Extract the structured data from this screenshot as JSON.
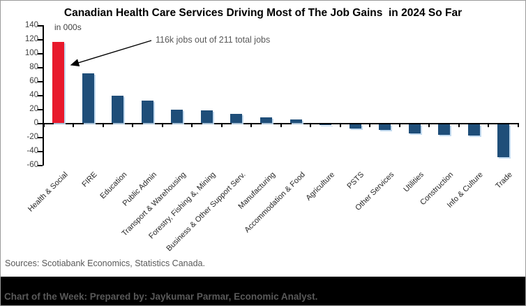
{
  "title": "Canadian Health Care Services Driving Most of The Job Gains  in 2024 So Far",
  "units_label": "in 000s",
  "annotation": {
    "text": "116k jobs out of 211 total jobs"
  },
  "chart_data": {
    "type": "bar",
    "title": "Canadian Health Care Services Driving Most of The Job Gains in 2024 So Far",
    "ylabel": "in 000s",
    "categories": [
      "Health & Social",
      "FIRE",
      "Education",
      "Public Admin",
      "Transport & Warehousing",
      "Forestry, Fishing &, Mining",
      "Business & Other Support Serv.",
      "Manufacturing",
      "Accommodation & Food",
      "Agriculture",
      "PSTS",
      "Other Services",
      "Utilities",
      "Construction",
      "Info & Culture",
      "Trade"
    ],
    "values": [
      116,
      71,
      39,
      32,
      19,
      18,
      13,
      8,
      5,
      -1,
      -6,
      -8,
      -13,
      -15,
      -16,
      -47
    ],
    "highlight_index": 0,
    "ylim": [
      -60,
      140
    ],
    "yticks": [
      140,
      120,
      100,
      80,
      60,
      40,
      20,
      0,
      -20,
      -40,
      -60
    ],
    "grid": "off",
    "legend": "none",
    "colors": {
      "bar_default": "#1F4E79",
      "bar_highlight": "#E8192C",
      "bar_shadow": "#BDD7EE",
      "axis": "#000000",
      "tick_text": "#404040",
      "category_text": "#262626",
      "annotation_text": "#595959"
    }
  },
  "footer": {
    "sources": "Sources: Scotiabank Economics, Statistics Canada."
  },
  "banner": {
    "text": "Chart of the Week: Prepared by: Jaykumar Parmar, Economic Analyst."
  }
}
